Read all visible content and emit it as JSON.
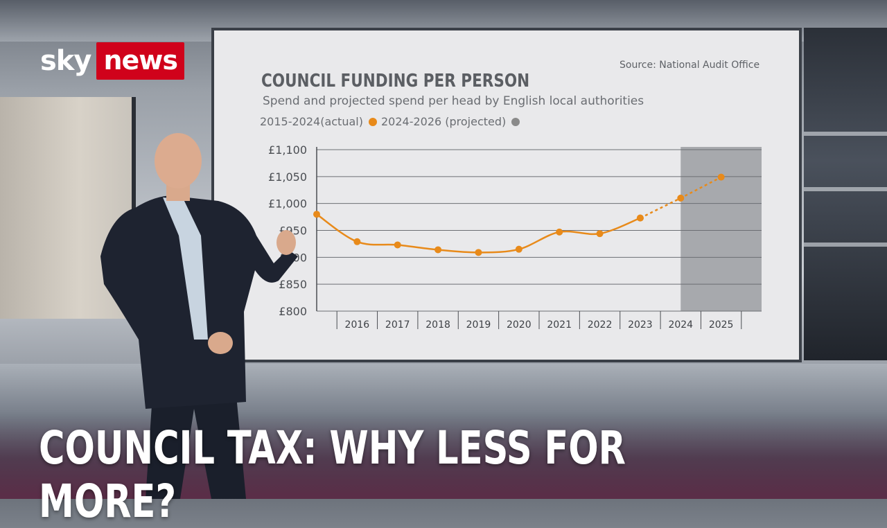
{
  "logo": {
    "sky": "sky",
    "news": "news"
  },
  "headline": "COUNCIL TAX: WHY LESS FOR MORE?",
  "colors": {
    "news_red": "#d0021b",
    "actual": "#e88a1a",
    "projected": "#8a8a8a",
    "projected_band": "#a7a9ad"
  },
  "chart_data": {
    "type": "line",
    "title": "COUNCIL FUNDING PER PERSON",
    "source": "Source: National Audit Office",
    "subtitle": "Spend and projected spend per head by English local authorities",
    "legend": {
      "actual_label": "2015-2024(actual)",
      "projected_label": "2024-2026 (projected)"
    },
    "y_ticks": [
      "£1,100",
      "£1,050",
      "£1,000",
      "£950",
      "£900",
      "£850",
      "£800"
    ],
    "y_tick_values": [
      1100,
      1050,
      1000,
      950,
      900,
      850,
      800
    ],
    "x_ticks": [
      "2016",
      "2017",
      "2018",
      "2019",
      "2020",
      "2021",
      "2022",
      "2023",
      "2024",
      "2025"
    ],
    "x_tick_values": [
      2016,
      2017,
      2018,
      2019,
      2020,
      2021,
      2022,
      2023,
      2024,
      2025
    ],
    "ylim": [
      800,
      1100
    ],
    "xlim": [
      2015,
      2026
    ],
    "projected_from": 2024,
    "series": [
      {
        "name": "2015-2024(actual)",
        "style": "solid",
        "points": [
          [
            2015,
            980
          ],
          [
            2016,
            929
          ],
          [
            2017,
            923
          ],
          [
            2018,
            914
          ],
          [
            2019,
            909
          ],
          [
            2020,
            915
          ],
          [
            2021,
            947
          ],
          [
            2022,
            944
          ],
          [
            2023,
            973
          ]
        ]
      },
      {
        "name": "2024-2026 (projected)",
        "style": "dashed",
        "points": [
          [
            2023,
            973
          ],
          [
            2024,
            1010
          ],
          [
            2025,
            1049
          ]
        ]
      }
    ],
    "grid": true
  }
}
